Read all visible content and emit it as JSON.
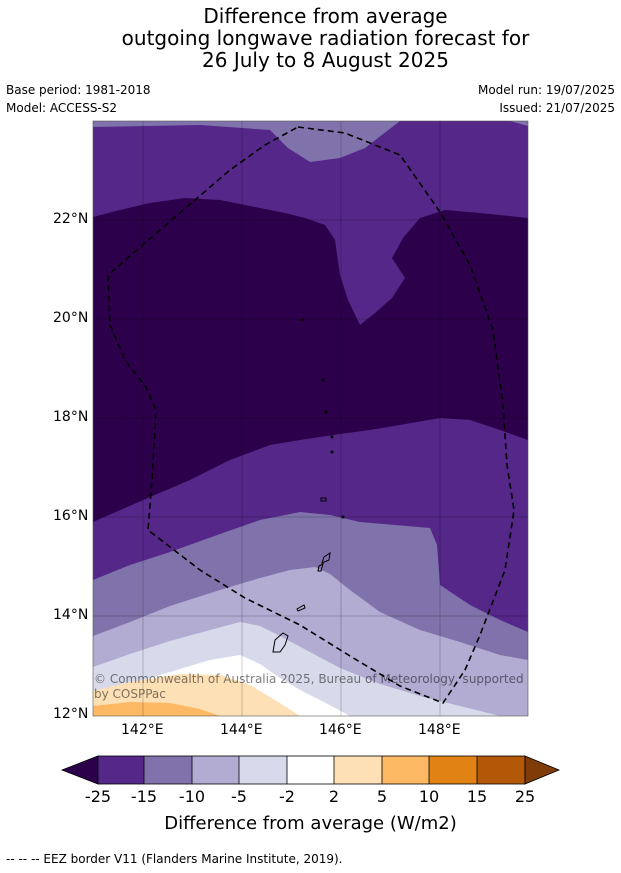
{
  "title": {
    "line1": "Difference from average",
    "line2": "outgoing longwave radiation forecast for",
    "line3": "26 July to 8 August 2025"
  },
  "meta": {
    "base_period": "Base period: 1981-2018",
    "model": "Model: ACCESS-S2",
    "model_run": "Model run: 19/07/2025",
    "issued": "Issued: 21/07/2025"
  },
  "axes": {
    "lat_labels": [
      "22°N",
      "20°N",
      "18°N",
      "16°N",
      "14°N",
      "12°N"
    ],
    "lon_labels": [
      "142°E",
      "144°E",
      "146°E",
      "148°E"
    ]
  },
  "watermark": {
    "line1": "© Commonwealth of Australia 2025, Bureau of Meteorology, supported",
    "line2": "by COSPPac"
  },
  "colorbar": {
    "label": "Difference from average (W/m2)",
    "ticks": [
      "-25",
      "-15",
      "-10",
      "-5",
      "-2",
      "2",
      "5",
      "10",
      "15",
      "25"
    ],
    "colors": {
      "below_min": "#2d004b",
      "c1": "#542788",
      "c2": "#8073ac",
      "c3": "#b2abd2",
      "c4": "#d8daeb",
      "c5": "#ffffff",
      "c6": "#fee0b6",
      "c7": "#fdb863",
      "c8": "#e08214",
      "c9": "#b35806",
      "above_max": "#7f3b08"
    }
  },
  "footer": {
    "legend": "--  --  -- EEZ border V11 (Flanders Marine Institute, 2019)."
  }
}
